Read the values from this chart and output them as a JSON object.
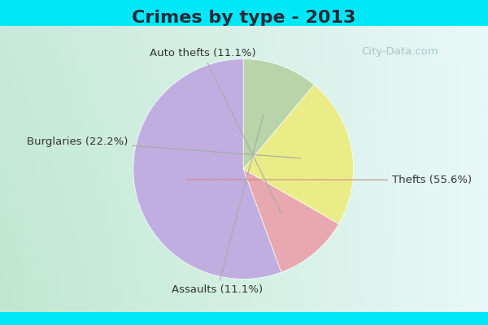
{
  "title": "Crimes by type - 2013",
  "slices": [
    {
      "label": "Thefts (55.6%)",
      "value": 55.6,
      "color": "#c0aee0"
    },
    {
      "label": "Auto thefts (11.1%)",
      "value": 11.1,
      "color": "#e8a8b0"
    },
    {
      "label": "Burglaries (22.2%)",
      "value": 22.2,
      "color": "#eaec88"
    },
    {
      "label": "Assaults (11.1%)",
      "value": 11.1,
      "color": "#b8d4a8"
    }
  ],
  "cyan_bar_color": "#00e8f8",
  "bg_color_topleft": "#c8ead8",
  "bg_color_topright": "#e0f0f8",
  "bg_color_bottomleft": "#d0eed8",
  "bg_color_bottomright": "#e8f4f8",
  "watermark": "City-Data.com",
  "title_fontsize": 16,
  "label_fontsize": 9.5,
  "startangle": 90,
  "title_color": "#2a2a3a"
}
